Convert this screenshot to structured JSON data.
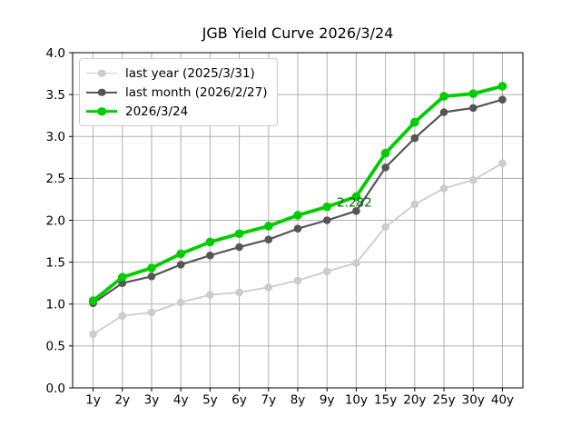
{
  "title": "JGB Yield Curve 2026/3/24",
  "chart_data": {
    "type": "line",
    "title": "JGB Yield Curve 2026/3/24",
    "categories": [
      "1y",
      "2y",
      "3y",
      "4y",
      "5y",
      "6y",
      "7y",
      "8y",
      "9y",
      "10y",
      "15y",
      "20y",
      "25y",
      "30y",
      "40y"
    ],
    "series": [
      {
        "name": "last year (2025/3/31)",
        "color": "#cccccc",
        "linewidth": 1.8,
        "marker_radius": 4.3,
        "values": [
          0.64,
          0.86,
          0.9,
          1.02,
          1.11,
          1.14,
          1.2,
          1.28,
          1.39,
          1.49,
          1.92,
          2.19,
          2.38,
          2.48,
          2.68
        ]
      },
      {
        "name": "last month (2026/2/27)",
        "color": "#555555",
        "linewidth": 2.2,
        "marker_radius": 4.3,
        "values": [
          1.01,
          1.25,
          1.33,
          1.47,
          1.58,
          1.68,
          1.77,
          1.9,
          2.0,
          2.11,
          2.63,
          2.98,
          3.29,
          3.34,
          3.44
        ]
      },
      {
        "name": "2026/3/24",
        "color": "#00cc00",
        "linewidth": 3.8,
        "marker_radius": 4.8,
        "values": [
          1.04,
          1.32,
          1.43,
          1.6,
          1.74,
          1.84,
          1.93,
          2.06,
          2.16,
          2.282,
          2.8,
          3.17,
          3.48,
          3.51,
          3.6
        ]
      }
    ],
    "ylim": [
      0.0,
      4.0
    ],
    "yticks": [
      "0.0",
      "0.5",
      "1.0",
      "1.5",
      "2.0",
      "2.5",
      "3.0",
      "3.5",
      "4.0"
    ],
    "grid": true,
    "grid_color": "#b0b0b0",
    "legend_position": "upper left",
    "annotation": {
      "text": "2.282",
      "series": "2026/3/24",
      "category": "10y",
      "value": 2.282,
      "color": "#006400"
    }
  }
}
